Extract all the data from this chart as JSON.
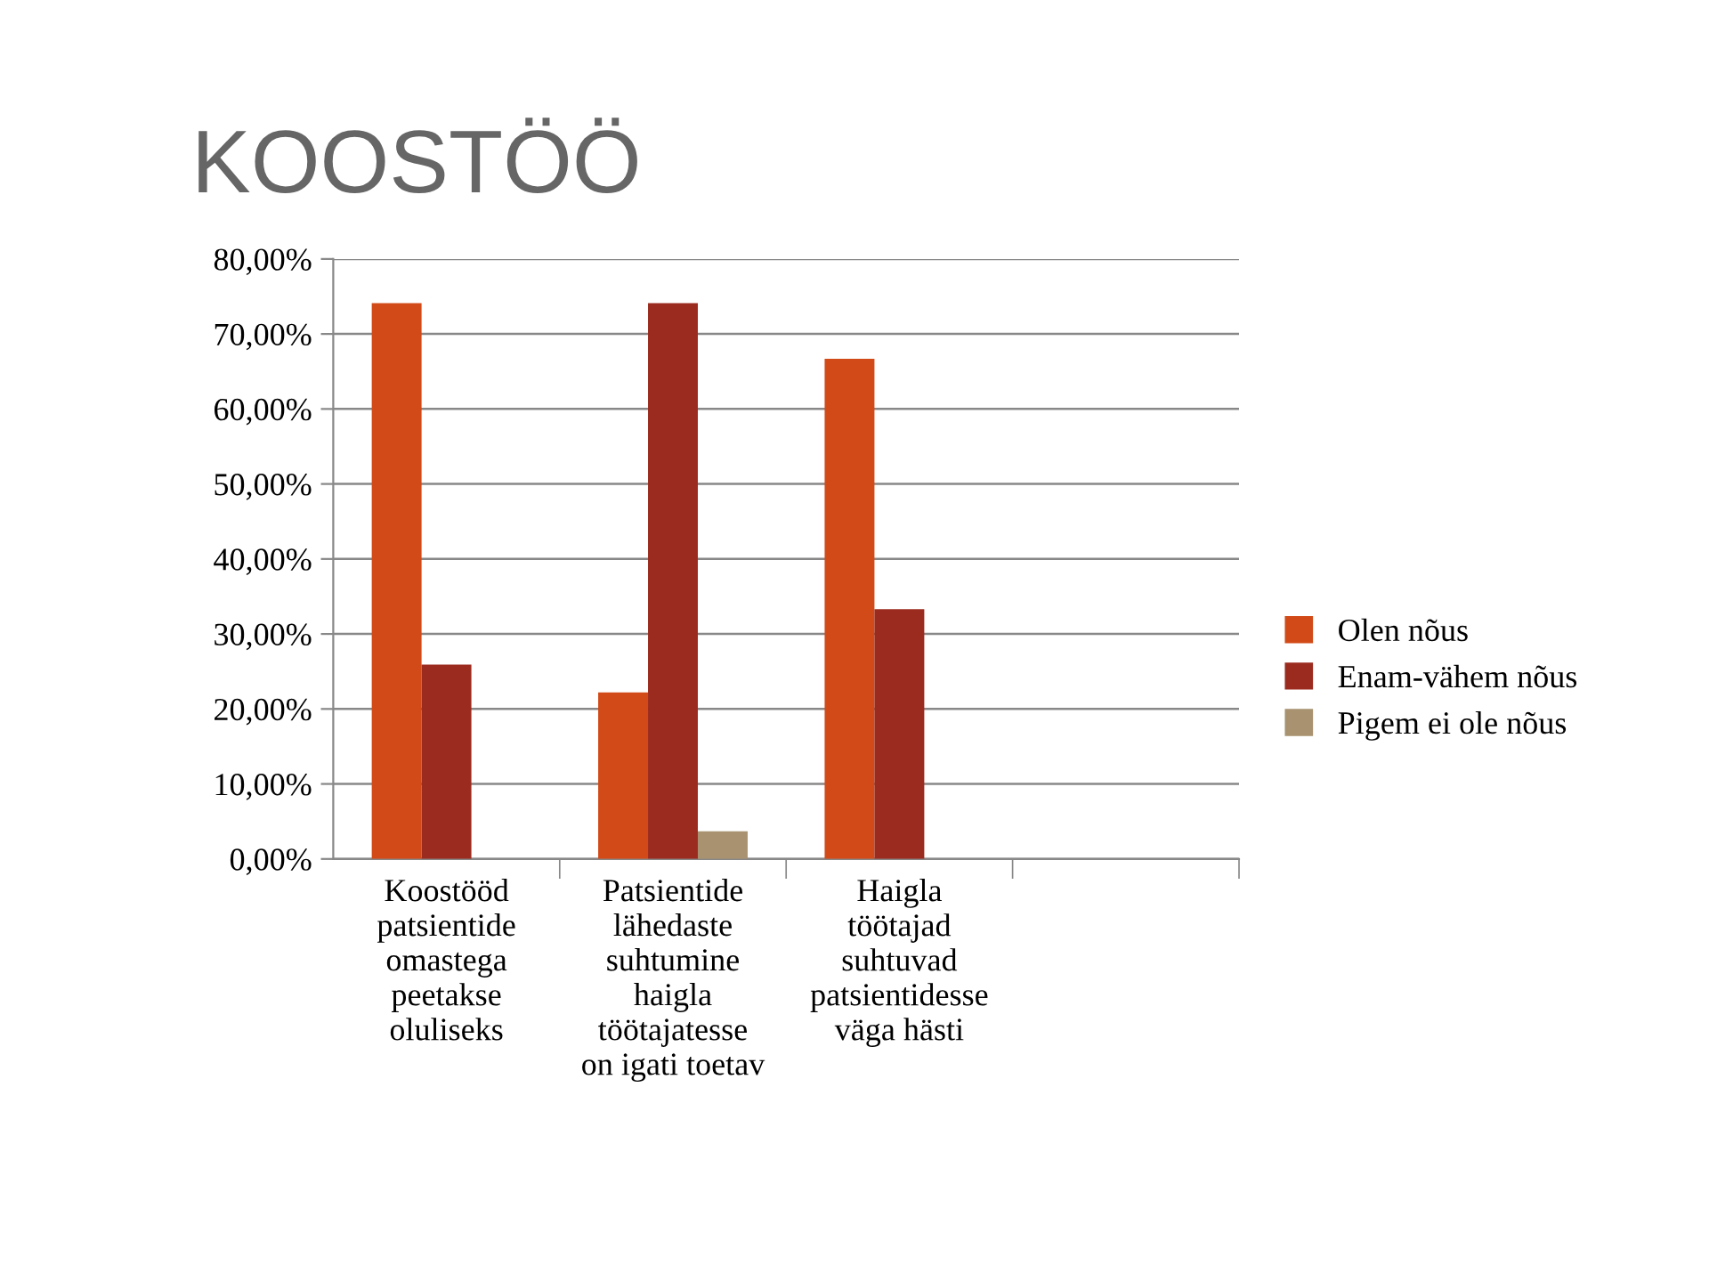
{
  "chart_data": {
    "type": "bar",
    "title": "KOOSTÖÖ",
    "categories": [
      "Koostööd\npatsientide\nomastega\npeetakse\noluliseks",
      "Patsientide\nlähedaste\nsuhtumine\nhaigla\ntöötajatesse\non igati toetav",
      "Haigla\ntöötajad\nsuhtuvad\npatsientidesse\nväga hästi",
      null
    ],
    "series": [
      {
        "name": "Olen nõus",
        "color": "#d24a18",
        "values": [
          74.1,
          22.2,
          66.7,
          null
        ]
      },
      {
        "name": "Enam-vähem nõus",
        "color": "#9c2b1f",
        "values": [
          25.9,
          74.1,
          33.3,
          null
        ]
      },
      {
        "name": "Pigem ei ole nõus",
        "color": "#a8926f",
        "values": [
          null,
          3.7,
          null,
          null
        ]
      }
    ],
    "ylim": [
      0,
      80
    ],
    "yticks": [
      {
        "value": 0,
        "label": "0,00%"
      },
      {
        "value": 10,
        "label": "10,00%"
      },
      {
        "value": 20,
        "label": "20,00%"
      },
      {
        "value": 30,
        "label": "30,00%"
      },
      {
        "value": 40,
        "label": "40,00%"
      },
      {
        "value": 50,
        "label": "50,00%"
      },
      {
        "value": 60,
        "label": "60,00%"
      },
      {
        "value": 70,
        "label": "70,00%"
      },
      {
        "value": 80,
        "label": "80,00%"
      }
    ],
    "grid": "y",
    "legend": "right"
  }
}
